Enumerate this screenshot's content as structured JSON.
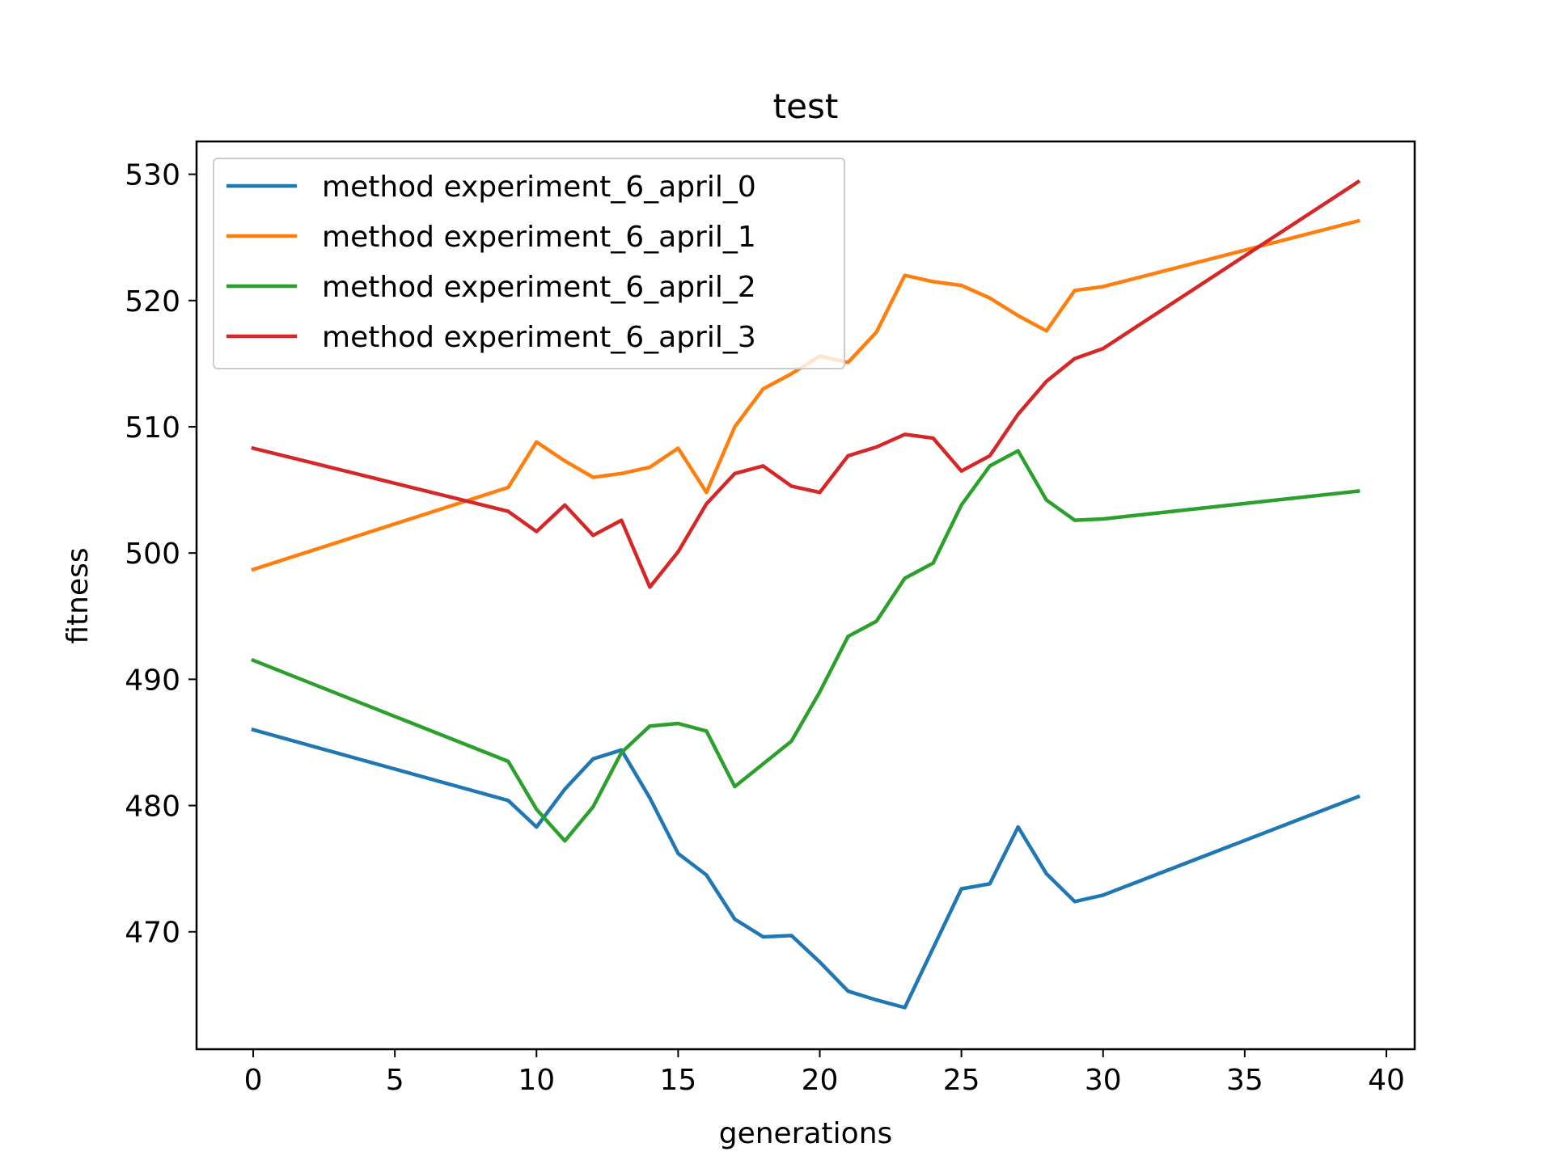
{
  "chart_data": {
    "type": "line",
    "title": "test",
    "xlabel": "generations",
    "ylabel": "fitness",
    "xlim": [
      -2,
      41
    ],
    "ylim": [
      460.7,
      532.6
    ],
    "xticks": [
      0,
      5,
      10,
      15,
      20,
      25,
      30,
      35,
      40
    ],
    "yticks": [
      470,
      480,
      490,
      500,
      510,
      520,
      530
    ],
    "grid": false,
    "legend_position": "upper-left",
    "series": [
      {
        "name": "method experiment_6_april_0",
        "color": "#1f77b4",
        "x": [
          0,
          9,
          10,
          11,
          12,
          13,
          14,
          15,
          16,
          17,
          18,
          19,
          20,
          21,
          22,
          23,
          24,
          25,
          26,
          27,
          28,
          29,
          30,
          39
        ],
        "values": [
          486.0,
          480.4,
          478.3,
          481.3,
          483.7,
          484.4,
          480.6,
          476.2,
          474.5,
          471.0,
          469.6,
          469.7,
          467.6,
          465.3,
          464.6,
          464.0,
          468.7,
          473.4,
          473.8,
          478.3,
          474.6,
          472.4,
          472.9,
          480.7
        ]
      },
      {
        "name": "method experiment_6_april_1",
        "color": "#ff7f0e",
        "x": [
          0,
          9,
          10,
          11,
          12,
          13,
          14,
          15,
          16,
          17,
          18,
          19,
          20,
          21,
          22,
          23,
          24,
          25,
          26,
          27,
          28,
          29,
          30,
          39
        ],
        "values": [
          498.7,
          505.2,
          508.8,
          507.3,
          506.0,
          506.3,
          506.8,
          508.3,
          504.8,
          510.0,
          513.0,
          514.2,
          515.6,
          515.1,
          517.5,
          522.0,
          521.5,
          521.2,
          520.2,
          518.8,
          517.6,
          520.8,
          521.1,
          526.3
        ]
      },
      {
        "name": "method experiment_6_april_2",
        "color": "#2ca02c",
        "x": [
          0,
          9,
          10,
          11,
          12,
          13,
          14,
          15,
          16,
          17,
          18,
          19,
          20,
          21,
          22,
          23,
          24,
          25,
          26,
          27,
          28,
          29,
          30,
          39
        ],
        "values": [
          491.5,
          483.5,
          479.7,
          477.2,
          479.9,
          484.2,
          486.3,
          486.5,
          485.9,
          481.5,
          483.3,
          485.1,
          489.0,
          493.4,
          494.6,
          498.0,
          499.2,
          503.8,
          506.9,
          508.1,
          504.2,
          502.6,
          502.7,
          504.9
        ]
      },
      {
        "name": "method experiment_6_april_3",
        "color": "#d62728",
        "x": [
          0,
          9,
          10,
          11,
          12,
          13,
          14,
          15,
          16,
          17,
          18,
          19,
          20,
          21,
          22,
          23,
          24,
          25,
          26,
          27,
          28,
          29,
          30,
          39
        ],
        "values": [
          508.3,
          503.3,
          501.7,
          503.8,
          501.4,
          502.6,
          497.3,
          500.1,
          503.9,
          506.3,
          506.9,
          505.3,
          504.8,
          507.7,
          508.4,
          509.4,
          509.1,
          506.5,
          507.7,
          511.0,
          513.6,
          515.4,
          516.2,
          529.4
        ]
      }
    ]
  }
}
